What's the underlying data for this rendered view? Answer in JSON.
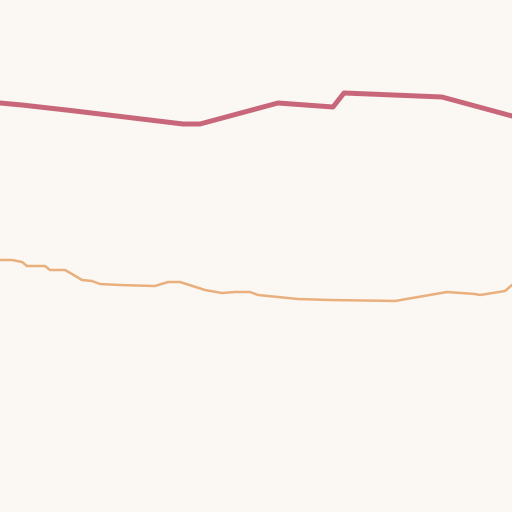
{
  "map": {
    "background_color": "#fbf8f3",
    "roads": [
      {
        "name": "major-road",
        "class": "major",
        "color": "#c8677a"
      },
      {
        "name": "minor-road",
        "class": "minor",
        "color": "#e9b07e"
      }
    ]
  }
}
